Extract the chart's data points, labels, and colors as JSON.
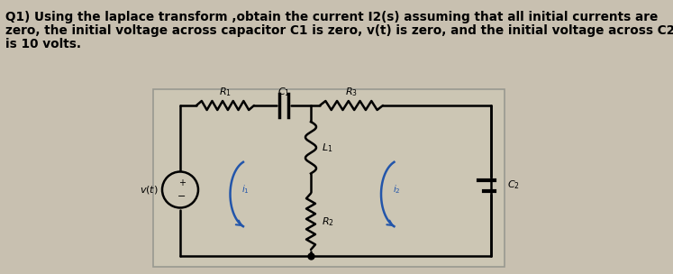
{
  "title_line1": "Q1) Using the laplace transform ,obtain the current I2(s) assuming that all initial currents are",
  "title_line2": "zero, the initial voltage across capacitor C1 is zero, v(t) is zero, and the initial voltage across C2",
  "title_line3": "is 10 volts.",
  "bg_color": "#c8c0b0",
  "circuit_bg": "#cec8b8",
  "text_color": "#000000",
  "arrow_color": "#2255aa",
  "font_size": 9.5
}
